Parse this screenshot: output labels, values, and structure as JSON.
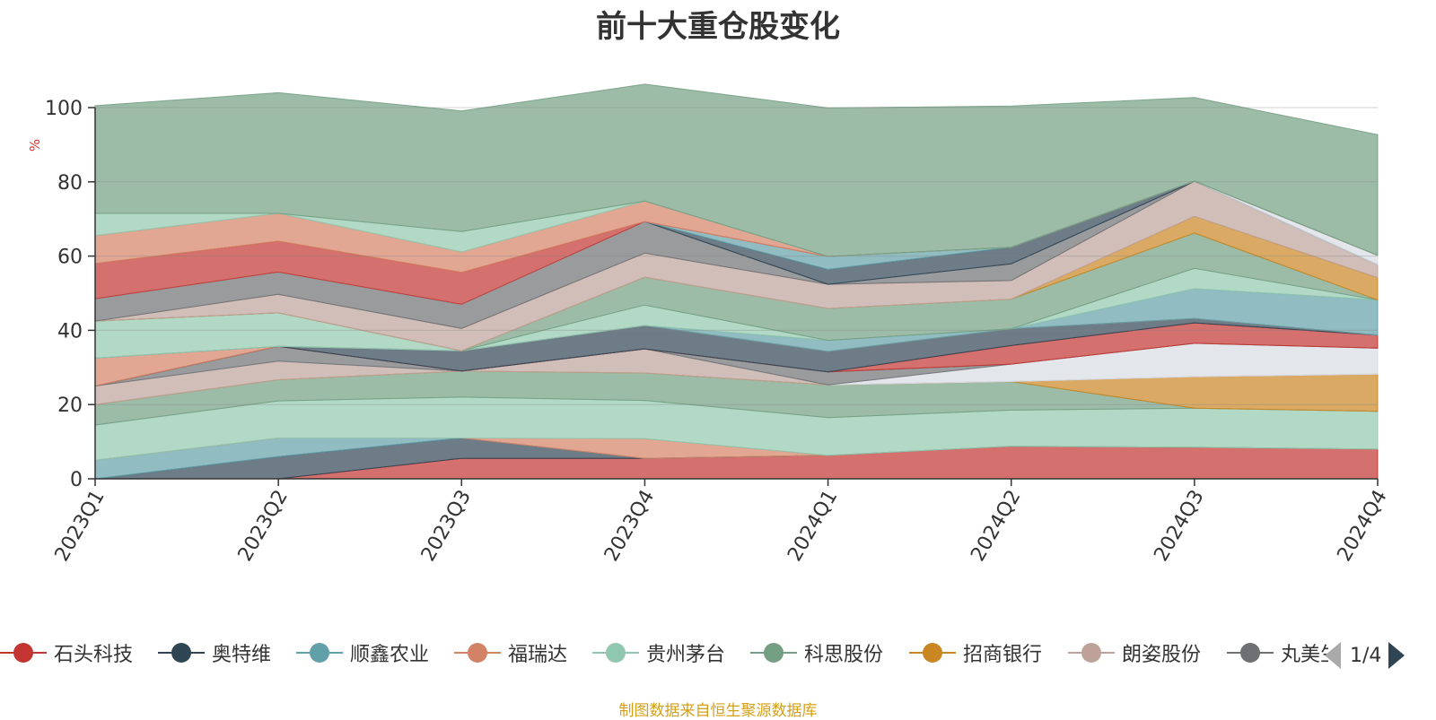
{
  "title": "前十大重仓股变化",
  "source_note": "制图数据来自恒生聚源数据库",
  "legend_pager": "1/4",
  "legend": [
    {
      "name": "石头科技",
      "color": "#c23531"
    },
    {
      "name": "奥特维",
      "color": "#2f4554"
    },
    {
      "name": "顺鑫农业",
      "color": "#61a0a8"
    },
    {
      "name": "福瑞达",
      "color": "#d48265"
    },
    {
      "name": "贵州茅台",
      "color": "#91c7ae"
    },
    {
      "name": "科思股份",
      "color": "#749f83"
    },
    {
      "name": "招商银行",
      "color": "#ca8622"
    },
    {
      "name": "朗姿股份",
      "color": "#bda29a"
    },
    {
      "name": "丸美生物",
      "color": "#6e7074"
    }
  ],
  "chart_data": {
    "type": "area",
    "stacked": true,
    "y_unit": "%",
    "ylim": [
      0,
      100
    ],
    "yticks": [
      0,
      20,
      40,
      60,
      80,
      100
    ],
    "grid": true,
    "legend_position": "bottom",
    "categories": [
      "2023Q1",
      "2023Q2",
      "2023Q3",
      "2023Q4",
      "2024Q1",
      "2024Q2",
      "2024Q3",
      "2024Q4"
    ],
    "layers": [
      {
        "color": "#c23531",
        "values": [
          0.0,
          0.0,
          5.5,
          5.5,
          6.3,
          8.8,
          8.5,
          8.0
        ]
      },
      {
        "color": "#2f4554",
        "values": [
          0.0,
          6.0,
          5.5,
          0.0,
          0.0,
          0.0,
          0.0,
          0.0
        ]
      },
      {
        "color": "#61a0a8",
        "values": [
          5.0,
          5.0,
          0.0,
          0.0,
          0.0,
          0.0,
          0.0,
          0.0
        ]
      },
      {
        "color": "#d48265",
        "values": [
          0.0,
          0.0,
          0.0,
          5.3,
          0.0,
          0.0,
          0.0,
          0.0
        ]
      },
      {
        "color": "#91c7ae",
        "values": [
          9.5,
          10.0,
          11.0,
          10.3,
          10.2,
          9.7,
          10.5,
          10.2
        ]
      },
      {
        "color": "#749f83",
        "values": [
          5.5,
          5.7,
          7.0,
          7.4,
          8.8,
          7.7,
          0.0,
          0.0
        ]
      },
      {
        "color": "#ca8622",
        "values": [
          0.0,
          0.0,
          0.0,
          0.0,
          0.0,
          0.0,
          8.5,
          10.0
        ]
      },
      {
        "color": "#bda29a",
        "values": [
          5.0,
          5.0,
          0.0,
          6.5,
          0.0,
          0.0,
          0.0,
          0.0
        ]
      },
      {
        "color": "#d7dbe2",
        "values": [
          0.0,
          0.0,
          0.0,
          0.0,
          0.0,
          4.7,
          9.0,
          7.0
        ]
      },
      {
        "color": "#6e7074",
        "values": [
          0.0,
          4.0,
          0.0,
          0.0,
          3.5,
          0.0,
          0.0,
          0.0
        ]
      },
      {
        "color": "#c23531",
        "values": [
          0.0,
          0.0,
          0.0,
          0.0,
          0.0,
          5.0,
          5.5,
          3.5
        ]
      },
      {
        "color": "#2f4554",
        "values": [
          0.0,
          0.0,
          5.5,
          6.3,
          5.5,
          4.5,
          1.2,
          0.0
        ]
      },
      {
        "color": "#d48265",
        "values": [
          7.5,
          0.0,
          0.0,
          0.0,
          0.0,
          0.0,
          0.0,
          0.0
        ]
      },
      {
        "color": "#61a0a8",
        "values": [
          0.0,
          0.0,
          0.0,
          0.0,
          3.0,
          0.0,
          8.0,
          9.5
        ]
      },
      {
        "color": "#91c7ae",
        "values": [
          10.0,
          9.0,
          0.0,
          5.5,
          0.0,
          0.0,
          5.5,
          0.0
        ]
      },
      {
        "color": "#749f83",
        "values": [
          0.0,
          0.0,
          0.0,
          7.5,
          8.6,
          8.0,
          9.5,
          0.0
        ]
      },
      {
        "color": "#ca8622",
        "values": [
          0.0,
          0.0,
          0.0,
          0.0,
          0.0,
          0.0,
          4.5,
          6.0
        ]
      },
      {
        "color": "#bda29a",
        "values": [
          0.0,
          5.0,
          6.0,
          6.5,
          6.5,
          5.0,
          9.5,
          3.5
        ]
      },
      {
        "color": "#6e7074",
        "values": [
          6.0,
          6.0,
          6.5,
          8.5,
          0.0,
          4.5,
          0.0,
          0.0
        ]
      },
      {
        "color": "#2f4554",
        "values": [
          0.0,
          0.0,
          0.0,
          0.0,
          4.0,
          4.5,
          0.0,
          0.0
        ]
      },
      {
        "color": "#61a0a8",
        "values": [
          0.0,
          0.0,
          0.0,
          0.0,
          3.5,
          0.0,
          0.0,
          0.0
        ]
      },
      {
        "color": "#d7dbe2",
        "values": [
          0.0,
          0.0,
          0.0,
          0.0,
          0.0,
          0.0,
          0.0,
          2.5
        ]
      },
      {
        "color": "#c23531",
        "values": [
          9.5,
          8.3,
          8.6,
          0.0,
          0.0,
          0.0,
          0.0,
          0.0
        ]
      },
      {
        "color": "#d48265",
        "values": [
          7.5,
          7.5,
          5.5,
          5.5,
          0.0,
          0.0,
          0.0,
          0.0
        ]
      },
      {
        "color": "#91c7ae",
        "values": [
          6.0,
          0.0,
          5.5,
          0.0,
          0.0,
          0.0,
          0.0,
          0.0
        ]
      },
      {
        "color": "#749f83",
        "values": [
          29.0,
          32.5,
          32.5,
          31.5,
          40.0,
          38.0,
          22.5,
          32.5
        ]
      }
    ]
  }
}
